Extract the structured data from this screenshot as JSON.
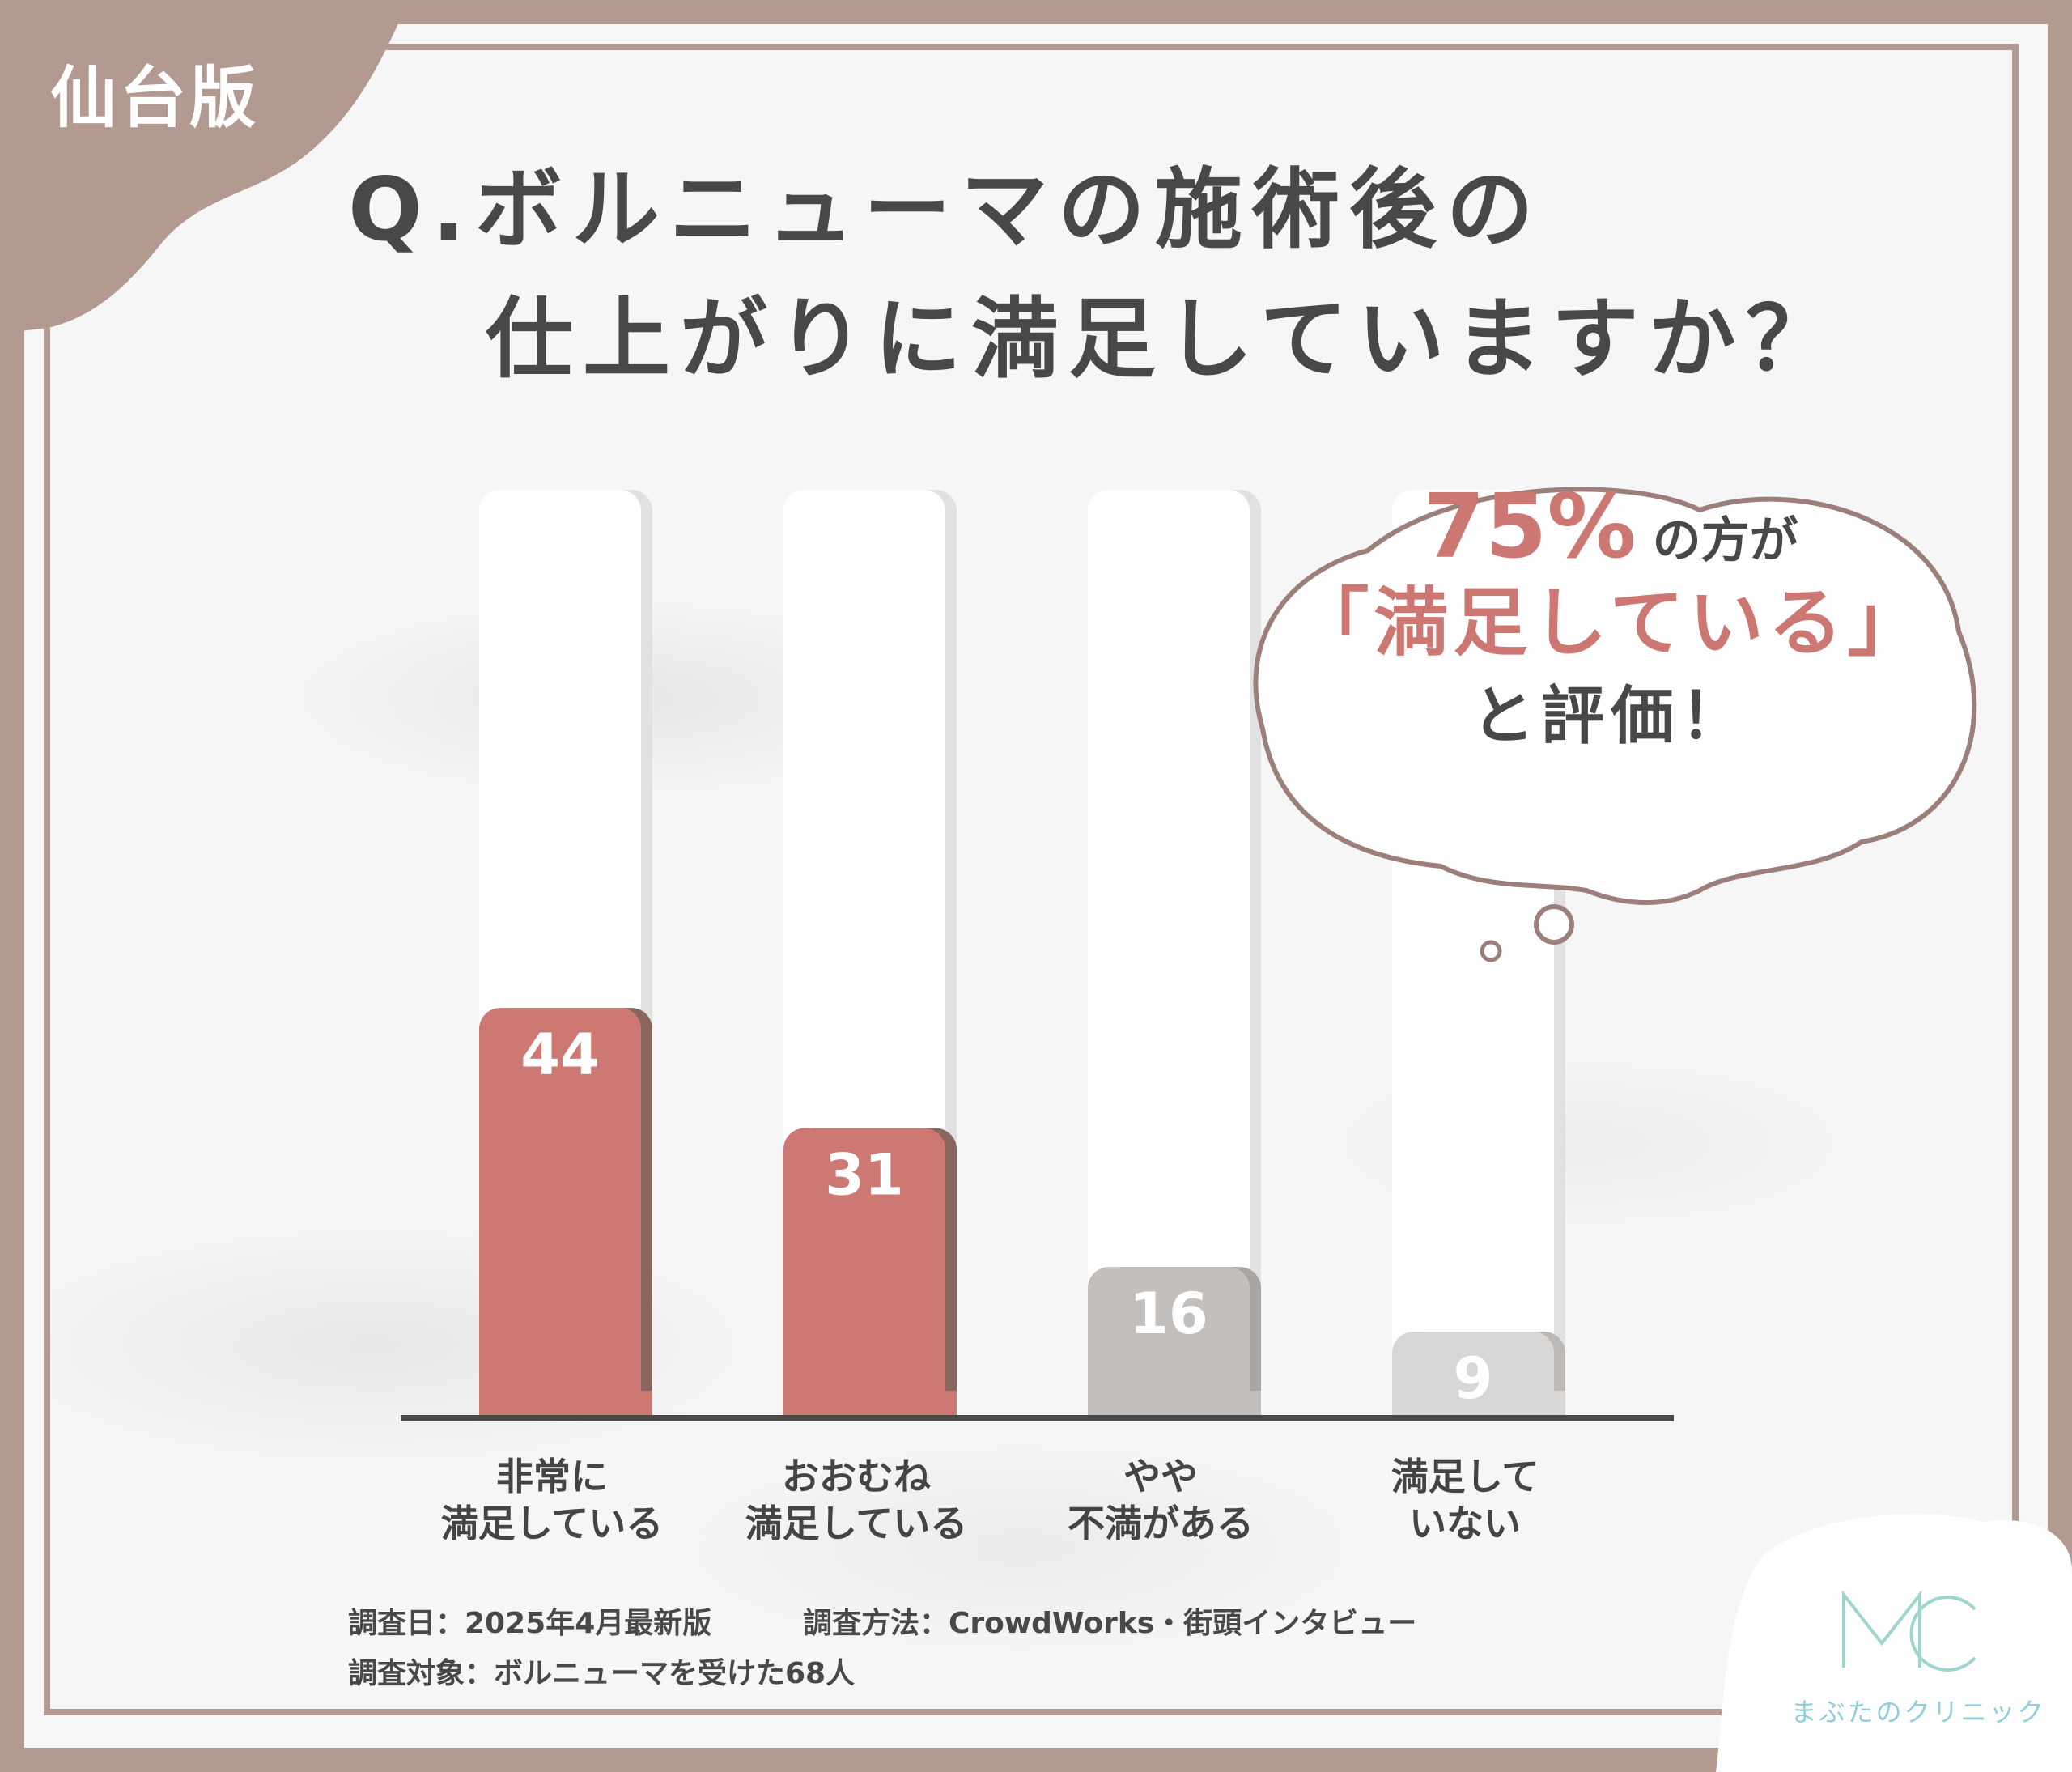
{
  "badge": {
    "label": "仙台版"
  },
  "title": {
    "line1": "Q.ボルニューマの施術後の",
    "line2": "仕上がりに満足していますか？"
  },
  "callout": {
    "percent": "75%",
    "line1_suffix": "の方が",
    "line2": "「満足している」",
    "line3": "と評価！"
  },
  "chart_data": {
    "type": "bar",
    "categories": [
      [
        "非常に",
        "満足している"
      ],
      [
        "おおむね",
        "満足している"
      ],
      [
        "やや",
        "不満がある"
      ],
      [
        "満足して",
        "いない"
      ]
    ],
    "values": [
      44,
      31,
      16,
      9
    ],
    "value_labels": [
      "44",
      "31",
      "16",
      "9"
    ],
    "bar_colors": [
      "#cd7873",
      "#cd7873",
      "#c2bfbd",
      "#d9d7d5"
    ],
    "bar_shadow_colors": [
      "#8a6660",
      "#8a6660",
      "#a9a5a3",
      "#bcb9b7"
    ],
    "ylim": [
      0,
      100
    ],
    "xlabel": "",
    "ylabel": ""
  },
  "footer": {
    "date": "調査日：2025年4月最新版",
    "method": "調査方法：CrowdWorks・街頭インタビュー",
    "target": "調査対象：ボルニューマを受けた68人"
  },
  "logo": {
    "name": "まぶたのクリニック",
    "accent": "#8fcfdc",
    "mark_letters": "MC"
  },
  "colors": {
    "frame": "#b39a90",
    "accent_red": "#cd7873",
    "text_dark": "#4a4747"
  }
}
